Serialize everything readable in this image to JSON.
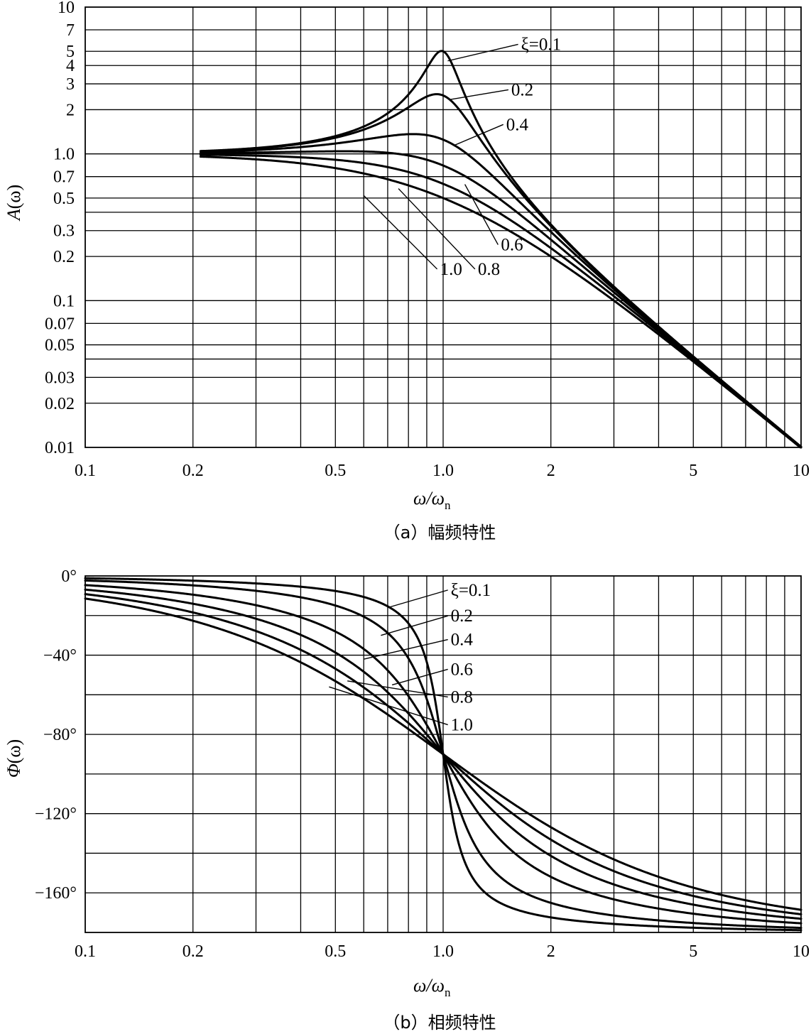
{
  "chart_data": [
    {
      "type": "line",
      "title": "",
      "caption": "（a）幅频特性",
      "xlabel": "ω/ωn",
      "xlabel_main": "ω/ω",
      "xlabel_sub": "n",
      "ylabel": "A(ω)",
      "ylabel_main": "A",
      "ylabel_paren": "(ω)",
      "x_scale": "log",
      "y_scale": "log",
      "xlim": [
        0.1,
        10
      ],
      "ylim": [
        0.01,
        10
      ],
      "x_gridlines": [
        0.2,
        0.3,
        0.4,
        0.5,
        0.6,
        0.7,
        0.8,
        0.9,
        1,
        2,
        3,
        4,
        5,
        6,
        7,
        8,
        9
      ],
      "y_gridlines": [
        0.02,
        0.03,
        0.04,
        0.05,
        0.07,
        0.1,
        0.2,
        0.3,
        0.4,
        0.5,
        0.7,
        1,
        2,
        3,
        4,
        5,
        7
      ],
      "x_ticks": [
        {
          "value": 0.1,
          "label": "0.1"
        },
        {
          "value": 0.2,
          "label": "0.2"
        },
        {
          "value": 0.5,
          "label": "0.5"
        },
        {
          "value": 1,
          "label": "1.0"
        },
        {
          "value": 2,
          "label": "2"
        },
        {
          "value": 5,
          "label": "5"
        },
        {
          "value": 10,
          "label": "10"
        }
      ],
      "y_ticks": [
        {
          "value": 0.01,
          "label": "0.01"
        },
        {
          "value": 0.02,
          "label": "0.02"
        },
        {
          "value": 0.03,
          "label": "0.03"
        },
        {
          "value": 0.05,
          "label": "0.05"
        },
        {
          "value": 0.07,
          "label": "0.07"
        },
        {
          "value": 0.1,
          "label": "0.1"
        },
        {
          "value": 0.2,
          "label": "0.2"
        },
        {
          "value": 0.3,
          "label": "0.3"
        },
        {
          "value": 0.5,
          "label": "0.5"
        },
        {
          "value": 0.7,
          "label": "0.7"
        },
        {
          "value": 1,
          "label": "1.0"
        },
        {
          "value": 2,
          "label": "2"
        },
        {
          "value": 3,
          "label": "3"
        },
        {
          "value": 4,
          "label": "4"
        },
        {
          "value": 5,
          "label": "5"
        },
        {
          "value": 7,
          "label": "7"
        },
        {
          "value": 10,
          "label": "10"
        }
      ],
      "series": [
        {
          "name": "ξ=0.1",
          "damping": 0.1,
          "x_range": [
            0.21,
            10
          ],
          "peak": [
            0.95,
            4.5
          ],
          "annotation": {
            "text": "ξ=0.1",
            "anchor": [
              1.03,
              4.3
            ],
            "text_at": [
              1.65,
              5.1
            ]
          }
        },
        {
          "name": "0.2",
          "damping": 0.2,
          "x_range": [
            0.21,
            10
          ],
          "peak": [
            0.94,
            2.6
          ],
          "annotation": {
            "text": "0.2",
            "anchor": [
              1.05,
              2.35
            ],
            "text_at": [
              1.55,
              2.5
            ]
          }
        },
        {
          "name": "0.4",
          "damping": 0.4,
          "x_range": [
            0.21,
            10
          ],
          "peak": [
            0.82,
            1.4
          ],
          "annotation": {
            "text": "0.4",
            "anchor": [
              1.08,
              1.15
            ],
            "text_at": [
              1.5,
              1.45
            ]
          }
        },
        {
          "name": "0.6",
          "damping": 0.6,
          "x_range": [
            0.21,
            10
          ],
          "annotation": {
            "text": "0.6",
            "anchor": [
              1.15,
              0.62
            ],
            "text_at": [
              1.45,
              0.22
            ]
          }
        },
        {
          "name": "0.8",
          "damping": 0.8,
          "x_range": [
            0.21,
            10
          ],
          "annotation": {
            "text": "0.8",
            "anchor": [
              0.75,
              0.58
            ],
            "text_at": [
              1.25,
              0.15
            ]
          }
        },
        {
          "name": "1.0",
          "damping": 1.0,
          "x_range": [
            0.21,
            10
          ],
          "annotation": {
            "text": "1.0",
            "anchor": [
              0.6,
              0.52
            ],
            "text_at": [
              0.98,
              0.15
            ]
          }
        }
      ]
    },
    {
      "type": "line",
      "title": "",
      "caption": "（b）相频特性",
      "xlabel": "ω/ωn",
      "xlabel_main": "ω/ω",
      "xlabel_sub": "n",
      "ylabel": "Φ(ω)",
      "ylabel_main": "Φ",
      "ylabel_paren": "(ω)",
      "x_scale": "log",
      "y_scale": "linear",
      "xlim": [
        0.1,
        10
      ],
      "ylim": [
        -180,
        0
      ],
      "x_gridlines": [
        0.2,
        0.3,
        0.4,
        0.5,
        0.6,
        0.7,
        0.8,
        0.9,
        1,
        2,
        3,
        4,
        5,
        6,
        7,
        8,
        9
      ],
      "y_gridlines": [
        -20,
        -40,
        -60,
        -80,
        -100,
        -120,
        -140,
        -160
      ],
      "x_ticks": [
        {
          "value": 0.1,
          "label": "0.1"
        },
        {
          "value": 0.2,
          "label": "0.2"
        },
        {
          "value": 0.5,
          "label": "0.5"
        },
        {
          "value": 1,
          "label": "1.0"
        },
        {
          "value": 2,
          "label": "2"
        },
        {
          "value": 5,
          "label": "5"
        },
        {
          "value": 10,
          "label": "10"
        }
      ],
      "y_ticks": [
        {
          "value": 0,
          "label": "0°"
        },
        {
          "value": -40,
          "label": "−40°"
        },
        {
          "value": -80,
          "label": "−80°"
        },
        {
          "value": -120,
          "label": "−120°"
        },
        {
          "value": -160,
          "label": "−160°"
        }
      ],
      "series": [
        {
          "name": "ξ=0.1",
          "damping": 0.1,
          "x_range": [
            0.1,
            10
          ],
          "annotation": {
            "text": "ξ=0.1",
            "anchor": [
              0.7,
              -16
            ],
            "text_at": [
              1.05,
              -10
            ]
          }
        },
        {
          "name": "0.2",
          "damping": 0.2,
          "x_range": [
            0.1,
            10
          ],
          "annotation": {
            "text": "0.2",
            "anchor": [
              0.67,
              -30
            ],
            "text_at": [
              1.05,
              -23
            ]
          }
        },
        {
          "name": "0.4",
          "damping": 0.4,
          "x_range": [
            0.1,
            10
          ],
          "annotation": {
            "text": "0.4",
            "anchor": [
              0.6,
              -42
            ],
            "text_at": [
              1.05,
              -35
            ]
          }
        },
        {
          "name": "0.6",
          "damping": 0.6,
          "x_range": [
            0.1,
            10
          ],
          "annotation": {
            "text": "0.6",
            "anchor": [
              0.72,
              -55
            ],
            "text_at": [
              1.05,
              -50
            ]
          }
        },
        {
          "name": "0.8",
          "damping": 0.8,
          "x_range": [
            0.1,
            10
          ],
          "annotation": {
            "text": "0.8",
            "anchor": [
              0.54,
              -53
            ],
            "text_at": [
              1.05,
              -64
            ]
          }
        },
        {
          "name": "1.0",
          "damping": 1.0,
          "x_range": [
            0.1,
            10
          ],
          "annotation": {
            "text": "1.0",
            "anchor": [
              0.48,
              -56
            ],
            "text_at": [
              1.05,
              -78
            ]
          }
        }
      ]
    }
  ]
}
